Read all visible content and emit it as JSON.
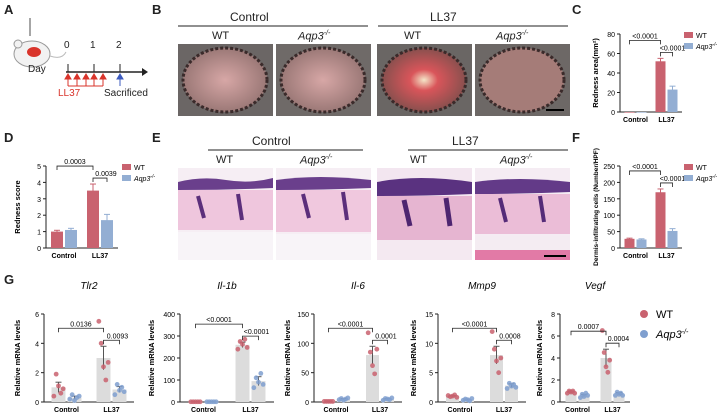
{
  "panels": {
    "A": "A",
    "B": "B",
    "C": "C",
    "D": "D",
    "E": "E",
    "F": "F",
    "G": "G"
  },
  "colors": {
    "wt": "#c9626f",
    "aqp3": "#93aed3",
    "wt_dot": "#c9626f",
    "aqp3_dot": "#7f9fcf",
    "g_bar": "#dcdcdc"
  },
  "genotype": {
    "wt": "WT",
    "aqp3": "Aqp3",
    "aqp3_sup": "-/-"
  },
  "groups": {
    "control": "Control",
    "ll37": "LL37"
  },
  "timeline": {
    "day_label": "Day",
    "ticks": [
      "0",
      "1",
      "2"
    ],
    "treatment": "LL37",
    "endpoint": "Sacrificed"
  },
  "chart_data": [
    {
      "id": "C",
      "type": "bar",
      "categories": [
        "Control",
        "LL37"
      ],
      "series": [
        {
          "name": "WT",
          "values": [
            0,
            52
          ],
          "errors": [
            0,
            3
          ]
        },
        {
          "name": "Aqp3-/-",
          "values": [
            0,
            23
          ],
          "errors": [
            0,
            3.5
          ]
        }
      ],
      "ylabel": "Redness area(mm²)",
      "ylim": [
        0,
        80
      ],
      "yticks": [
        0,
        20,
        40,
        60,
        80
      ],
      "pvalues": [
        {
          "text": "<0.0001",
          "span": "WT LL37 vs Control"
        },
        {
          "text": "<0.0001",
          "span": "LL37 WT vs Aqp3-/-"
        }
      ]
    },
    {
      "id": "D",
      "type": "bar",
      "categories": [
        "Control",
        "LL37"
      ],
      "series": [
        {
          "name": "WT",
          "values": [
            1.0,
            3.5
          ],
          "errors": [
            0.08,
            0.4
          ]
        },
        {
          "name": "Aqp3-/-",
          "values": [
            1.1,
            1.7
          ],
          "errors": [
            0.1,
            0.35
          ]
        }
      ],
      "ylabel": "Redness score",
      "ylim": [
        0,
        5
      ],
      "yticks": [
        0,
        1,
        2,
        3,
        4,
        5
      ],
      "pvalues": [
        {
          "text": "0.0003"
        },
        {
          "text": "0.0039"
        }
      ]
    },
    {
      "id": "F",
      "type": "bar",
      "categories": [
        "Control",
        "LL37"
      ],
      "series": [
        {
          "name": "WT",
          "values": [
            28,
            170
          ],
          "errors": [
            2,
            10
          ]
        },
        {
          "name": "Aqp3-/-",
          "values": [
            26,
            52
          ],
          "errors": [
            2,
            7
          ]
        }
      ],
      "ylabel": "Dermis-infiltrating cells (Number/HPF)",
      "ylim": [
        0,
        250
      ],
      "yticks": [
        0,
        50,
        100,
        150,
        200,
        250
      ],
      "pvalues": [
        {
          "text": "<0.0001"
        },
        {
          "text": "<0.0001"
        }
      ]
    },
    {
      "id": "G1",
      "type": "bar",
      "title": "Tlr2",
      "categories": [
        "Control",
        "LL37"
      ],
      "ylabel": "Relative mRNA levels",
      "ylim": [
        0,
        6
      ],
      "yticks": [
        0,
        2,
        4,
        6
      ],
      "series": [
        {
          "name": "WT",
          "values": [
            1.0,
            3.0
          ],
          "errors": [
            0.35,
            0.8
          ],
          "points": [
            [
              0.4,
              1.9,
              1.1,
              0.6,
              0.9
            ],
            [
              5.5,
              4.0,
              2.4,
              1.5,
              2.7
            ]
          ]
        },
        {
          "name": "Aqp3-/-",
          "values": [
            0.3,
            0.85
          ],
          "errors": [
            0.1,
            0.2
          ],
          "points": [
            [
              0.2,
              0.5,
              0.1,
              0.3,
              0.4
            ],
            [
              0.5,
              1.2,
              0.8,
              1.0,
              0.7
            ]
          ]
        }
      ],
      "pvalues": [
        {
          "text": "0.0136"
        },
        {
          "text": "0.0093"
        }
      ]
    },
    {
      "id": "G2",
      "type": "bar",
      "title": "Il-1b",
      "categories": [
        "Control",
        "LL37"
      ],
      "ylabel": "Relative mRNA levels",
      "ylim": [
        0,
        400
      ],
      "yticks": [
        0,
        100,
        200,
        300,
        400
      ],
      "series": [
        {
          "name": "WT",
          "values": [
            1,
            260
          ],
          "errors": [
            0.5,
            12
          ],
          "points": [
            [
              1,
              1,
              1,
              1,
              1
            ],
            [
              240,
              275,
              262,
              285,
              248
            ]
          ]
        },
        {
          "name": "Aqp3-/-",
          "values": [
            1,
            95
          ],
          "errors": [
            0.5,
            20
          ],
          "points": [
            [
              1,
              1,
              1,
              1,
              1
            ],
            [
              65,
              110,
              90,
              130,
              80
            ]
          ]
        }
      ],
      "pvalues": [
        {
          "text": "<0.0001"
        },
        {
          "text": "<0.0001"
        }
      ]
    },
    {
      "id": "G3",
      "type": "bar",
      "title": "Il-6",
      "categories": [
        "Control",
        "LL37"
      ],
      "ylabel": "Relative mRNA levels",
      "ylim": [
        0,
        150
      ],
      "yticks": [
        0,
        50,
        100,
        150
      ],
      "series": [
        {
          "name": "WT",
          "values": [
            1,
            80
          ],
          "errors": [
            0.5,
            15
          ],
          "points": [
            [
              1,
              1,
              1,
              1,
              1
            ],
            [
              118,
              85,
              62,
              48,
              90
            ]
          ]
        },
        {
          "name": "Aqp3-/-",
          "values": [
            5,
            5
          ],
          "errors": [
            1,
            1
          ],
          "points": [
            [
              4,
              6,
              3,
              5,
              7
            ],
            [
              3,
              6,
              5,
              4,
              7
            ]
          ]
        }
      ],
      "pvalues": [
        {
          "text": "<0.0001"
        },
        {
          "text": "0.0001"
        }
      ]
    },
    {
      "id": "G4",
      "type": "bar",
      "title": "Mmp9",
      "categories": [
        "Control",
        "LL37"
      ],
      "ylabel": "Relative mRNA levels",
      "ylim": [
        0,
        15
      ],
      "yticks": [
        0,
        5,
        10,
        15
      ],
      "series": [
        {
          "name": "WT",
          "values": [
            1.0,
            8.0
          ],
          "errors": [
            0.1,
            1.5
          ],
          "points": [
            [
              1.1,
              0.9,
              1.0,
              1.2,
              0.8
            ],
            [
              12.0,
              9.0,
              7.0,
              5.0,
              7.5
            ]
          ]
        },
        {
          "name": "Aqp3-/-",
          "values": [
            0.4,
            2.8
          ],
          "errors": [
            0.1,
            0.3
          ],
          "points": [
            [
              0.3,
              0.5,
              0.4,
              0.2,
              0.6
            ],
            [
              2.3,
              3.2,
              2.7,
              3.0,
              2.5
            ]
          ]
        }
      ],
      "pvalues": [
        {
          "text": "<0.0001"
        },
        {
          "text": "0.0008"
        }
      ]
    },
    {
      "id": "G5",
      "type": "bar",
      "title": "Vegf",
      "categories": [
        "Control",
        "LL37"
      ],
      "ylabel": "Relative mRNA levels",
      "ylim": [
        0,
        8
      ],
      "yticks": [
        0,
        2,
        4,
        6,
        8
      ],
      "series": [
        {
          "name": "WT",
          "values": [
            0.9,
            4.0
          ],
          "errors": [
            0.1,
            0.8
          ],
          "points": [
            [
              0.8,
              1.0,
              0.9,
              1.0,
              0.8
            ],
            [
              6.5,
              4.5,
              3.2,
              2.7,
              3.8
            ]
          ]
        },
        {
          "name": "Aqp3-/-",
          "values": [
            0.6,
            0.75
          ],
          "errors": [
            0.1,
            0.1
          ],
          "points": [
            [
              0.4,
              0.7,
              0.5,
              0.8,
              0.6
            ],
            [
              0.6,
              0.9,
              0.7,
              0.8,
              0.6
            ]
          ]
        }
      ],
      "pvalues": [
        {
          "text": "0.0007"
        },
        {
          "text": "0.0004"
        }
      ]
    }
  ]
}
